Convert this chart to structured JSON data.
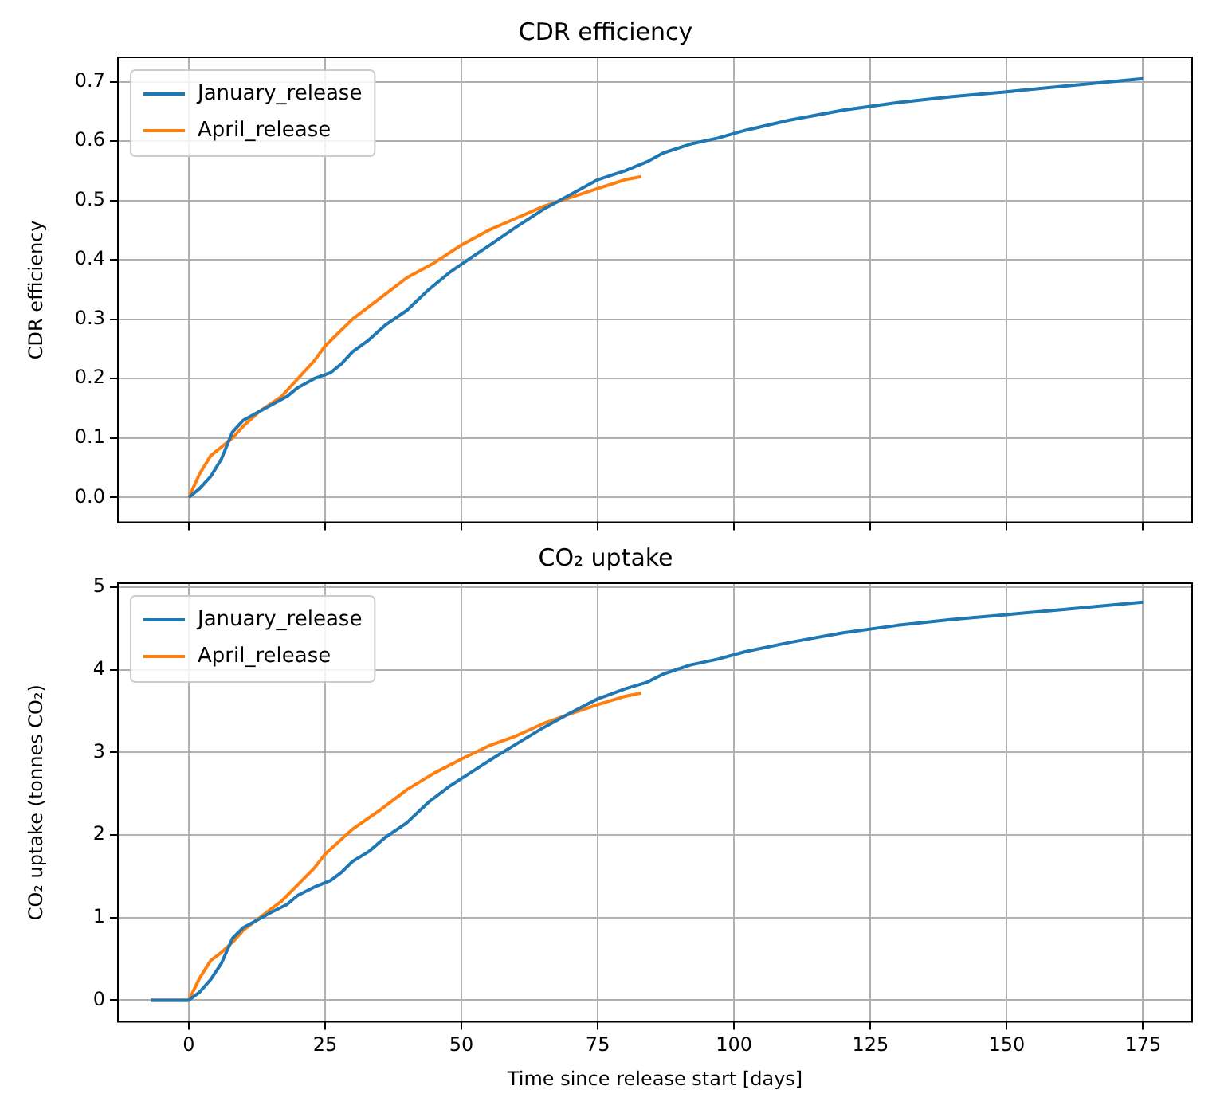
{
  "chart_data": [
    {
      "type": "line",
      "title": "CDR efficiency",
      "ylabel": "CDR efficiency",
      "xlim": [
        -13,
        184
      ],
      "xticks": [
        0,
        25,
        50,
        75,
        100,
        125,
        150,
        175
      ],
      "ylim": [
        -0.042,
        0.741
      ],
      "yticks": [
        {
          "value": 0,
          "label": "0.0"
        },
        0.1,
        0.2,
        0.3,
        0.4,
        0.5,
        0.6,
        0.7
      ],
      "grid": true,
      "legend": "top left",
      "tick_labels": "y",
      "series": [
        {
          "name": "January_release",
          "color": "#1f77b4",
          "x": [
            0,
            2,
            4,
            6,
            8,
            10,
            12,
            15,
            18,
            20,
            23,
            26,
            28,
            30,
            33,
            36,
            40,
            44,
            48,
            52,
            56,
            60,
            65,
            70,
            75,
            80,
            84,
            87,
            92,
            97,
            102,
            110,
            120,
            130,
            140,
            150,
            160,
            175
          ],
          "values": [
            0,
            0.015,
            0.035,
            0.065,
            0.11,
            0.13,
            0.14,
            0.155,
            0.17,
            0.185,
            0.2,
            0.21,
            0.225,
            0.245,
            0.265,
            0.29,
            0.315,
            0.35,
            0.38,
            0.405,
            0.43,
            0.455,
            0.485,
            0.51,
            0.535,
            0.55,
            0.565,
            0.58,
            0.595,
            0.605,
            0.618,
            0.635,
            0.652,
            0.665,
            0.675,
            0.683,
            0.692,
            0.705
          ]
        },
        {
          "name": "April_release",
          "color": "#ff7f0e",
          "x": [
            0,
            2,
            4,
            6,
            8,
            10,
            13,
            17,
            20,
            23,
            25,
            30,
            35,
            40,
            45,
            50,
            55,
            60,
            65,
            70,
            75,
            80,
            83
          ],
          "values": [
            0,
            0.04,
            0.07,
            0.085,
            0.1,
            0.12,
            0.145,
            0.17,
            0.2,
            0.23,
            0.255,
            0.3,
            0.335,
            0.37,
            0.395,
            0.425,
            0.45,
            0.47,
            0.49,
            0.505,
            0.52,
            0.535,
            0.54
          ]
        }
      ]
    },
    {
      "type": "line",
      "title": "CO₂ uptake",
      "xlabel": "Time since release start [days]",
      "ylabel": "CO₂ uptake (tonnes CO₂)",
      "xlim": [
        -13,
        184
      ],
      "xticks": [
        0,
        25,
        50,
        75,
        100,
        125,
        150,
        175
      ],
      "ylim": [
        -0.26,
        5.05
      ],
      "yticks": [
        0,
        1,
        2,
        3,
        4,
        5
      ],
      "grid": true,
      "legend": "top left",
      "series": [
        {
          "name": "January_release",
          "color": "#1f77b4",
          "x": [
            -7,
            0,
            2,
            4,
            6,
            8,
            10,
            12,
            15,
            18,
            20,
            23,
            26,
            28,
            30,
            33,
            36,
            40,
            44,
            48,
            52,
            56,
            60,
            65,
            70,
            75,
            80,
            84,
            87,
            92,
            97,
            102,
            110,
            120,
            130,
            140,
            150,
            160,
            175
          ],
          "values": [
            0,
            0,
            0.1,
            0.25,
            0.45,
            0.75,
            0.88,
            0.95,
            1.06,
            1.16,
            1.27,
            1.37,
            1.45,
            1.55,
            1.68,
            1.8,
            1.97,
            2.15,
            2.4,
            2.6,
            2.77,
            2.94,
            3.1,
            3.3,
            3.48,
            3.65,
            3.77,
            3.85,
            3.95,
            4.06,
            4.13,
            4.22,
            4.33,
            4.45,
            4.54,
            4.61,
            4.67,
            4.73,
            4.82
          ]
        },
        {
          "name": "April_release",
          "color": "#ff7f0e",
          "x": [
            -7,
            0,
            2,
            4,
            6,
            8,
            10,
            13,
            17,
            20,
            23,
            25,
            30,
            35,
            40,
            45,
            50,
            55,
            60,
            65,
            70,
            75,
            80,
            83
          ],
          "values": [
            0,
            0,
            0.27,
            0.48,
            0.58,
            0.7,
            0.85,
            1.0,
            1.2,
            1.4,
            1.6,
            1.77,
            2.07,
            2.3,
            2.55,
            2.75,
            2.92,
            3.08,
            3.2,
            3.35,
            3.47,
            3.58,
            3.68,
            3.72
          ]
        }
      ]
    }
  ]
}
